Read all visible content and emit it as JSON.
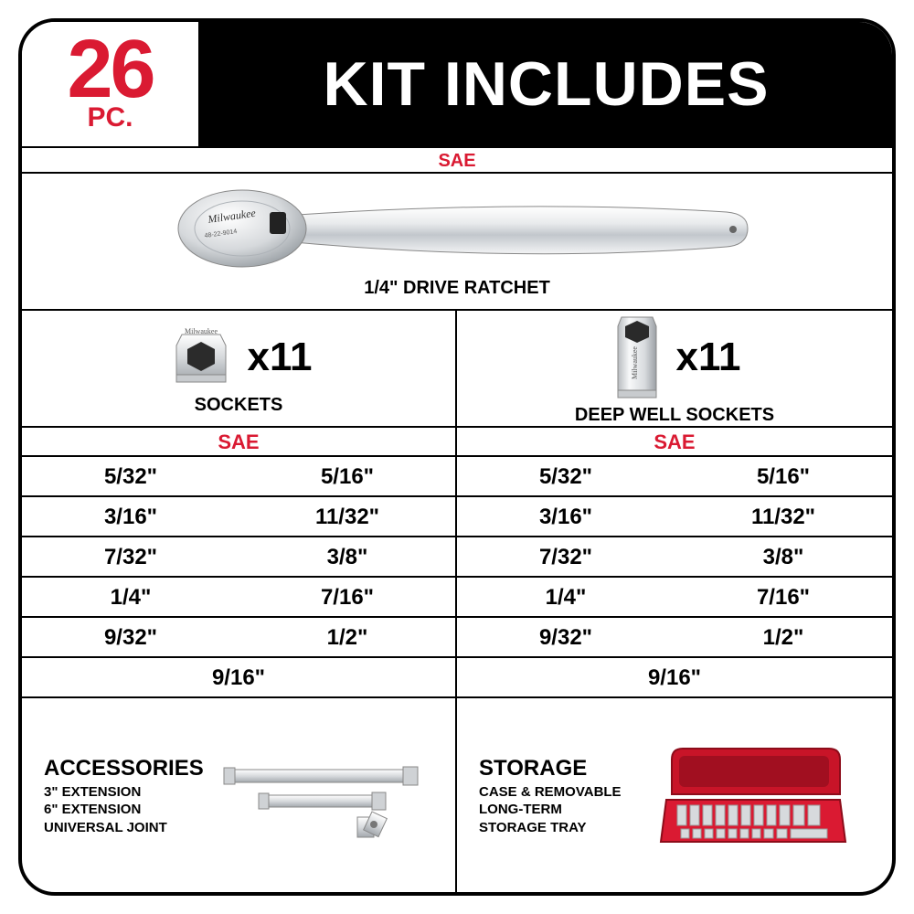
{
  "colors": {
    "red": "#da1a32",
    "black": "#000000",
    "white": "#ffffff",
    "chrome_light": "#f5f6f7",
    "chrome_mid": "#d0d3d6",
    "chrome_dark": "#8a8f94",
    "case_red": "#c81428",
    "case_dark": "#8c0c1a"
  },
  "header": {
    "count": "26",
    "pc_label": "PC.",
    "title": "KIT INCLUDES"
  },
  "sae_label": "SAE",
  "ratchet": {
    "label": "1/4\" DRIVE RATCHET",
    "brand_text": "Milwaukee",
    "sku_text": "48-22-9014"
  },
  "sockets": {
    "left": {
      "count": "x11",
      "label": "SOCKETS"
    },
    "right": {
      "count": "x11",
      "label": "DEEP WELL SOCKETS"
    }
  },
  "sizes": {
    "header_left": "SAE",
    "header_right": "SAE",
    "rows": [
      {
        "a": "5/32\"",
        "b": "5/16\"",
        "c": "5/32\"",
        "d": "5/16\""
      },
      {
        "a": "3/16\"",
        "b": "11/32\"",
        "c": "3/16\"",
        "d": "11/32\""
      },
      {
        "a": "7/32\"",
        "b": "3/8\"",
        "c": "7/32\"",
        "d": "3/8\""
      },
      {
        "a": "1/4\"",
        "b": "7/16\"",
        "c": "1/4\"",
        "d": "7/16\""
      },
      {
        "a": "9/32\"",
        "b": "1/2\"",
        "c": "9/32\"",
        "d": "1/2\""
      }
    ],
    "last": {
      "left": "9/16\"",
      "right": "9/16\""
    }
  },
  "footer": {
    "left": {
      "title": "ACCESSORIES",
      "lines": [
        "3\" EXTENSION",
        "6\" EXTENSION",
        "UNIVERSAL JOINT"
      ]
    },
    "right": {
      "title": "STORAGE",
      "lines": [
        "CASE & REMOVABLE",
        "LONG-TERM",
        "STORAGE TRAY"
      ]
    }
  }
}
